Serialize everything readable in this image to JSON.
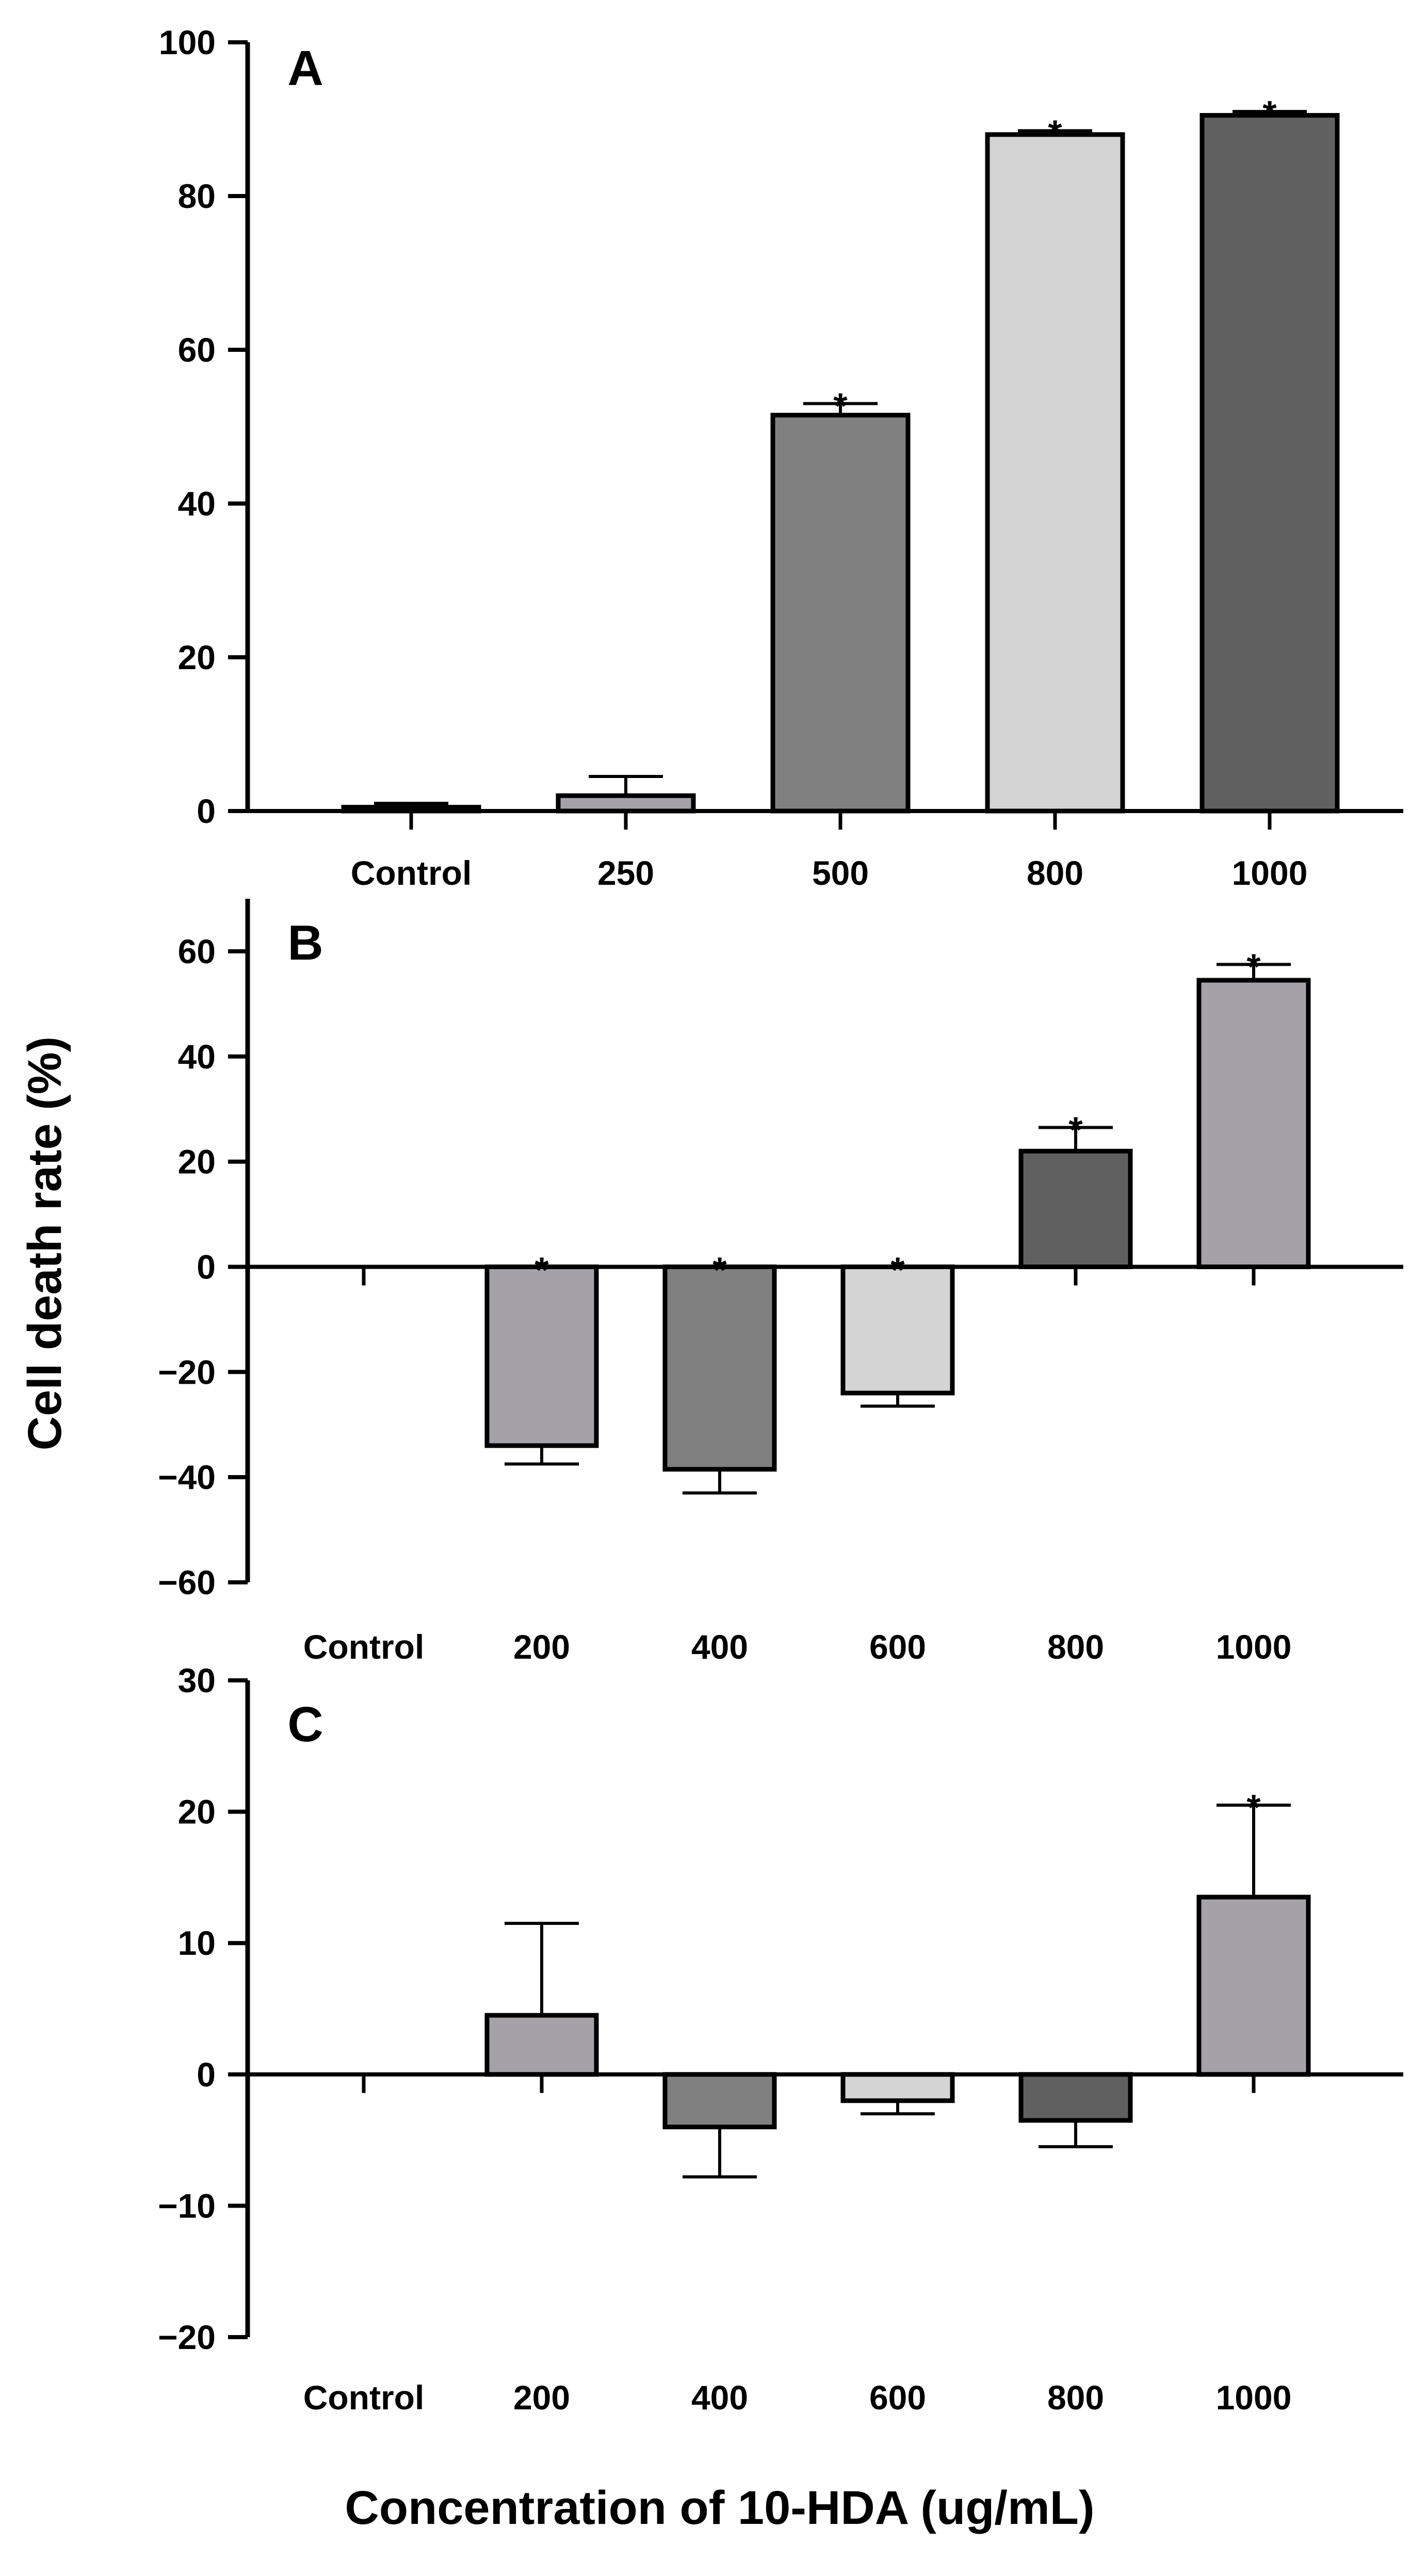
{
  "figure": {
    "ylabel": "Cell death rate (%)",
    "xlabel": "Concentration of 10-HDA (ug/mL)"
  },
  "chart_data": [
    {
      "type": "bar",
      "panel": "A",
      "categories": [
        "Control",
        "250",
        "500",
        "800",
        "1000"
      ],
      "values": [
        0.5,
        2,
        51.5,
        88,
        90.5
      ],
      "errors": [
        0.5,
        2.5,
        1.5,
        0.5,
        0.5
      ],
      "colors": [
        "#ffffff",
        "#a4a2a8",
        "#808080",
        "#d4d4d4",
        "#606060"
      ],
      "significant": [
        false,
        false,
        true,
        true,
        true
      ],
      "ylim": [
        0,
        100
      ],
      "yticks": [
        0,
        20,
        40,
        60,
        80,
        100
      ]
    },
    {
      "type": "bar",
      "panel": "B",
      "categories": [
        "Control",
        "200",
        "400",
        "600",
        "800",
        "1000"
      ],
      "values": [
        0,
        -34,
        -38.5,
        -24,
        22,
        54.5
      ],
      "errors": [
        0,
        3.5,
        4.5,
        2.5,
        4.5,
        3
      ],
      "colors": [
        "#ffffff",
        "#a4a2a8",
        "#808080",
        "#d4d4d4",
        "#606060",
        "#a4a2a8"
      ],
      "significant": [
        false,
        true,
        true,
        true,
        true,
        true
      ],
      "ylim": [
        -60,
        70
      ],
      "yticks": [
        -60,
        -40,
        -20,
        0,
        20,
        40,
        60
      ]
    },
    {
      "type": "bar",
      "panel": "C",
      "categories": [
        "Control",
        "200",
        "400",
        "600",
        "800",
        "1000"
      ],
      "values": [
        0,
        4.5,
        -4,
        -2,
        -3.5,
        13.5
      ],
      "errors": [
        0,
        7,
        3.8,
        1,
        2,
        7
      ],
      "colors": [
        "#ffffff",
        "#a4a2a8",
        "#808080",
        "#d4d4d4",
        "#606060",
        "#a4a2a8"
      ],
      "significant": [
        false,
        false,
        false,
        false,
        false,
        true
      ],
      "ylim": [
        -20,
        30
      ],
      "yticks": [
        -20,
        -10,
        0,
        10,
        20,
        30
      ]
    }
  ]
}
